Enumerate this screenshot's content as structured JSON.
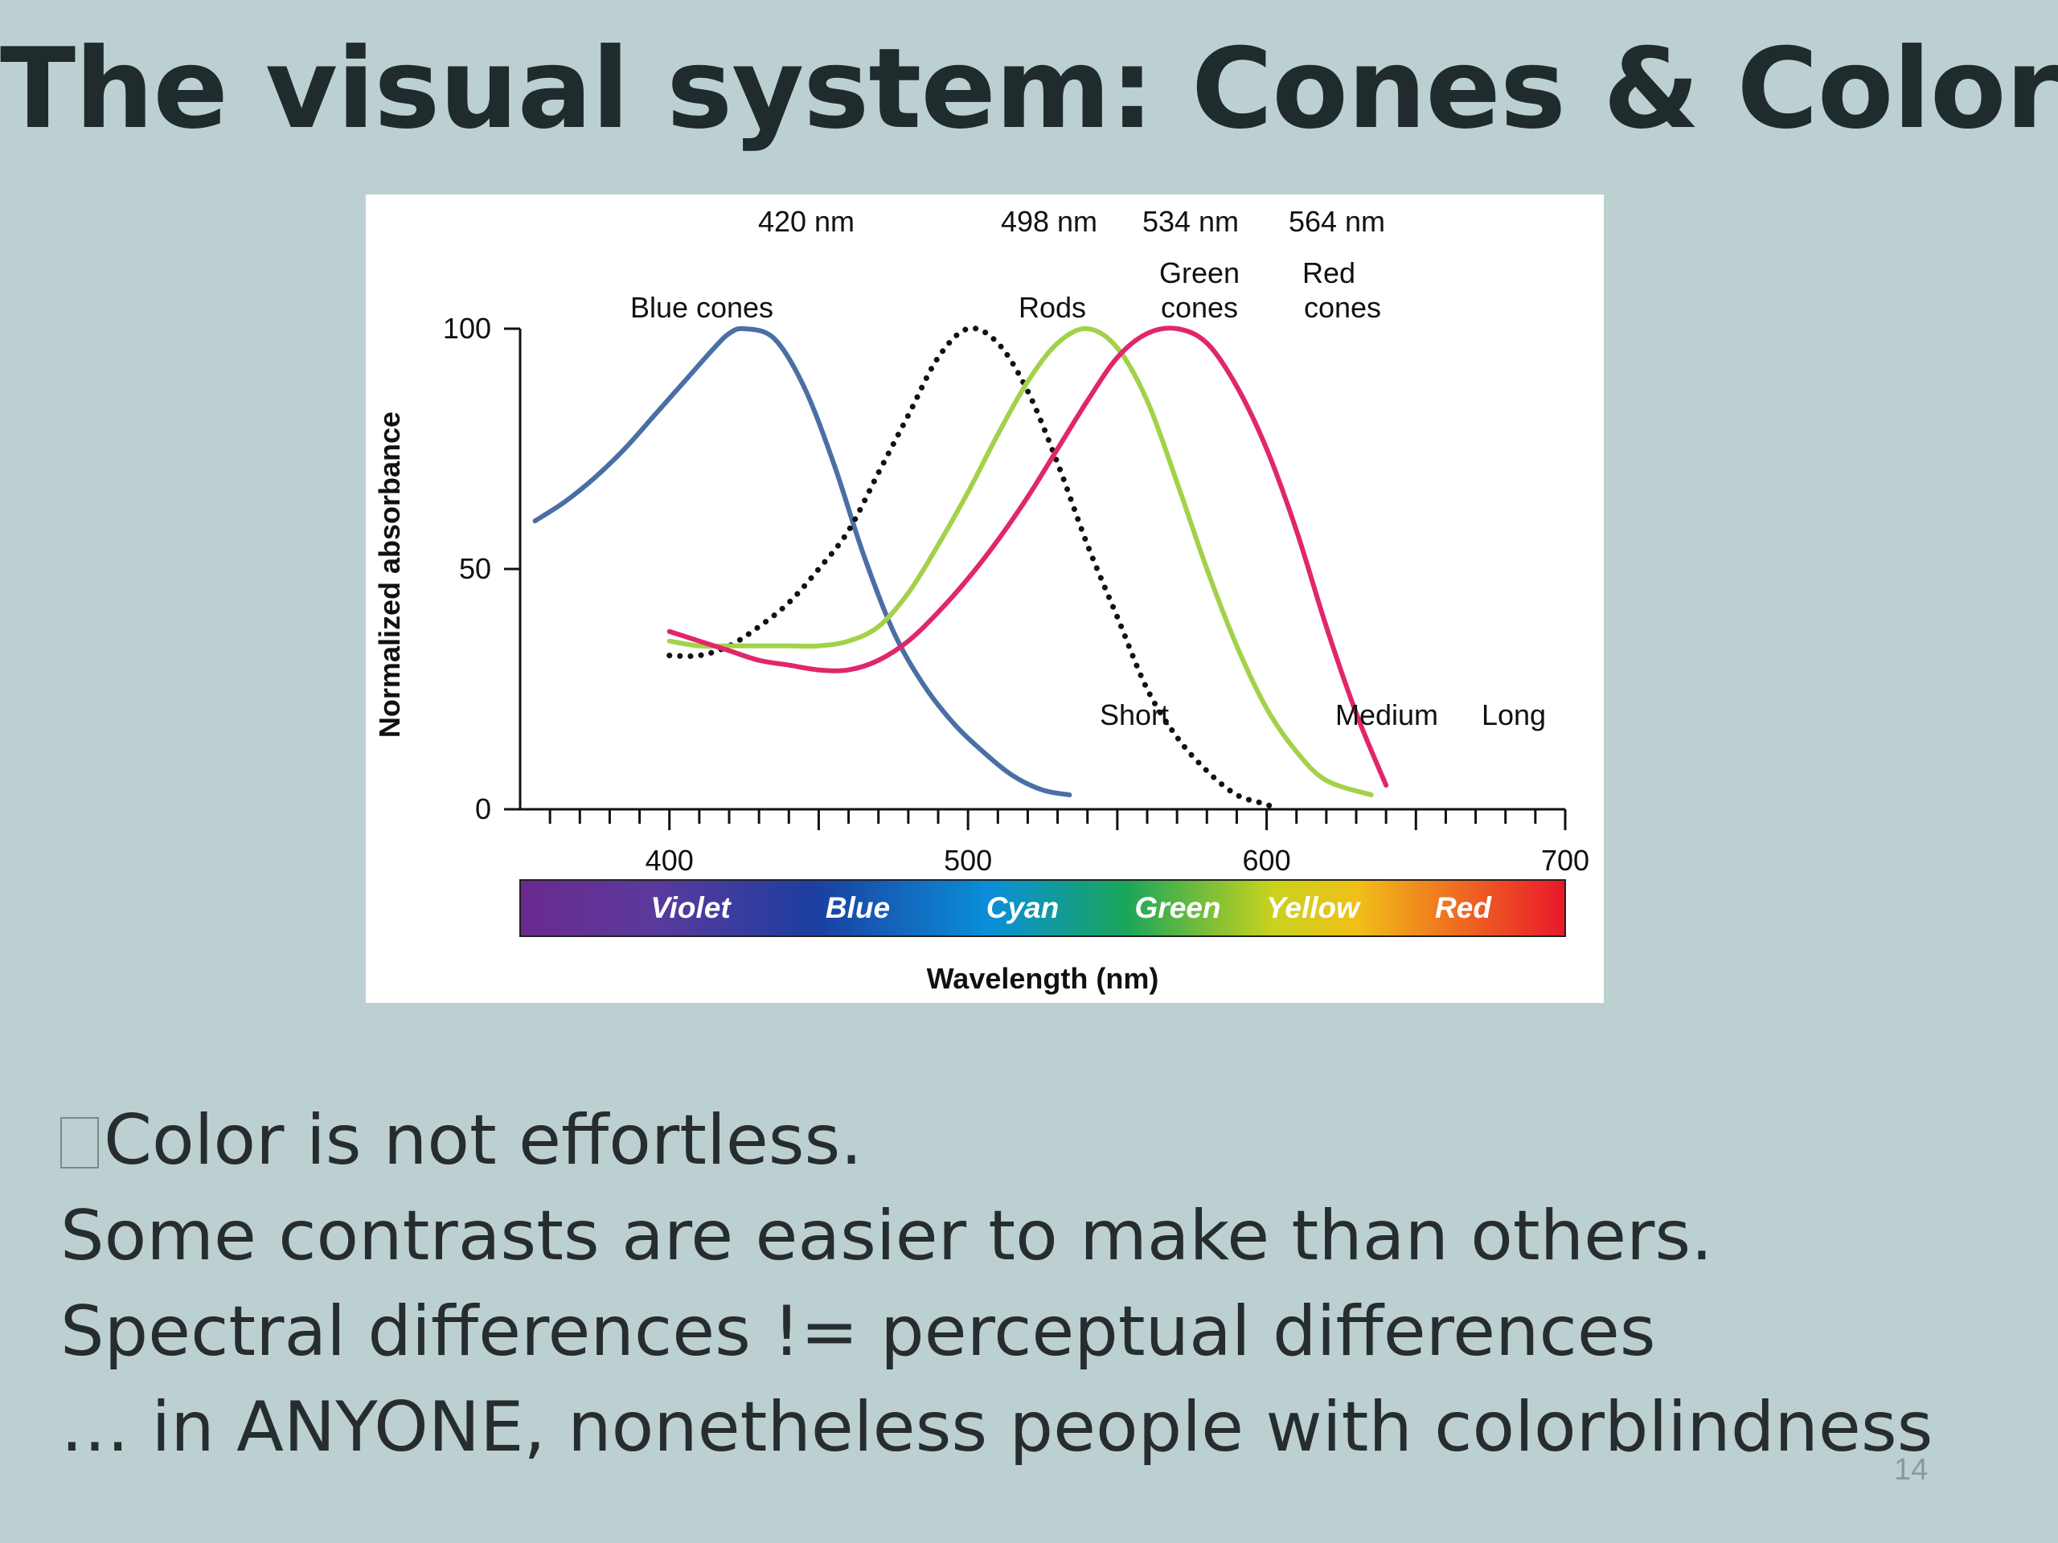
{
  "slide": {
    "title": "The visual system: Cones & Color",
    "bullets": [
      "Color is not effortless.",
      "Some contrasts are easier to make than others.",
      "Spectral differences != perceptual differences",
      "… in ANYONE, nonetheless people with colorblindness"
    ],
    "page_number": "14"
  },
  "colors": {
    "background": "#bdd0d1",
    "short": "#4a6fa5",
    "medium": "#a3d14a",
    "long": "#e0266c",
    "rods": "#111111"
  },
  "chart_data": {
    "type": "line",
    "xlabel": "Wavelength (nm)",
    "ylabel": "Normalized absorbance",
    "xlim": [
      350,
      700
    ],
    "ylim": [
      0,
      100
    ],
    "x_ticks": [
      400,
      500,
      600,
      700
    ],
    "y_ticks": [
      0,
      50,
      100
    ],
    "grid": false,
    "legend": "none",
    "peak_labels": [
      "420 nm",
      "498 nm",
      "534 nm",
      "564 nm"
    ],
    "curve_labels": {
      "blue": "Blue cones",
      "rods": "Rods",
      "green": [
        "Green",
        "cones"
      ],
      "red": [
        "Red",
        "cones"
      ]
    },
    "series": [
      {
        "key": "short",
        "name": "Short",
        "dashed": false,
        "x": [
          355,
          365,
          375,
          385,
          395,
          405,
          415,
          420,
          425,
          435,
          445,
          455,
          465,
          475,
          485,
          495,
          505,
          515,
          525,
          534
        ],
        "y": [
          60,
          64,
          69,
          75,
          82,
          89,
          96,
          99,
          100,
          98,
          88,
          72,
          53,
          37,
          26,
          18,
          12,
          7,
          4,
          3
        ]
      },
      {
        "key": "rods",
        "name": "Rods",
        "dashed": true,
        "x": [
          400,
          410,
          420,
          430,
          440,
          450,
          460,
          470,
          480,
          490,
          500,
          510,
          520,
          530,
          540,
          550,
          560,
          570,
          580,
          590,
          600,
          603
        ],
        "y": [
          32,
          32,
          34,
          38,
          43,
          50,
          58,
          70,
          82,
          94,
          100,
          97,
          87,
          72,
          55,
          40,
          25,
          15,
          8,
          3,
          1,
          0
        ]
      },
      {
        "key": "medium",
        "name": "Medium",
        "dashed": false,
        "x": [
          400,
          410,
          420,
          430,
          440,
          450,
          460,
          470,
          480,
          490,
          500,
          510,
          520,
          530,
          540,
          550,
          560,
          570,
          580,
          590,
          600,
          610,
          620,
          635
        ],
        "y": [
          35,
          34,
          34,
          34,
          34,
          34,
          35,
          38,
          45,
          55,
          66,
          78,
          89,
          97,
          100,
          96,
          85,
          68,
          50,
          34,
          21,
          12,
          6,
          3
        ]
      },
      {
        "key": "long",
        "name": "Long",
        "dashed": false,
        "x": [
          400,
          410,
          420,
          430,
          440,
          450,
          460,
          470,
          480,
          490,
          500,
          510,
          520,
          530,
          540,
          550,
          560,
          570,
          580,
          590,
          600,
          610,
          620,
          630,
          640
        ],
        "y": [
          37,
          35,
          33,
          31,
          30,
          29,
          29,
          31,
          35,
          41,
          48,
          56,
          65,
          75,
          85,
          94,
          99,
          100,
          97,
          88,
          75,
          58,
          38,
          20,
          5
        ]
      }
    ],
    "spectrum_band": {
      "labels": [
        "Violet",
        "Blue",
        "Cyan",
        "Green",
        "Yellow",
        "Red"
      ]
    }
  }
}
